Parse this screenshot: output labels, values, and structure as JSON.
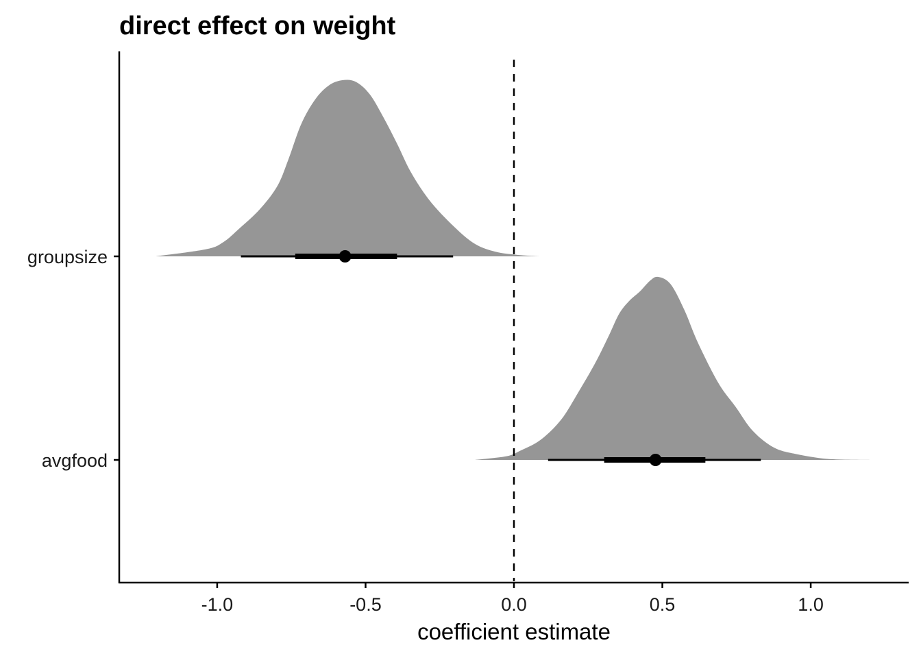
{
  "chart_data": {
    "type": "area",
    "subtype": "half-eye (density + point interval)",
    "title": "direct effect on weight",
    "xlabel": "coefficient estimate",
    "ylabel": "",
    "xlim": [
      -1.33,
      1.33
    ],
    "x_ticks": [
      -1.0,
      -0.5,
      0.0,
      0.5,
      1.0
    ],
    "x_tick_labels": [
      "-1.0",
      "-0.5",
      "0.0",
      "0.5",
      "1.0"
    ],
    "categories": [
      "groupsize",
      "avgfood"
    ],
    "reference_line": {
      "x": 0.0,
      "style": "dashed"
    },
    "grid": false,
    "legend": "none",
    "colors": {
      "density": "#969696",
      "interval": "#000000",
      "reference": "#000000"
    },
    "series": [
      {
        "name": "groupsize",
        "point": -0.569,
        "interval_66": [
          -0.737,
          -0.394
        ],
        "interval_95": [
          -0.92,
          -0.205
        ],
        "density": {
          "x": [
            -1.207,
            -1.039,
            -0.98,
            -0.924,
            -0.855,
            -0.797,
            -0.76,
            -0.717,
            -0.67,
            -0.624,
            -0.578,
            -0.532,
            -0.486,
            -0.44,
            -0.394,
            -0.348,
            -0.29,
            -0.221,
            -0.14,
            -0.071,
            0.0,
            0.088
          ],
          "y": [
            0,
            0.04,
            0.08,
            0.16,
            0.27,
            0.4,
            0.55,
            0.75,
            0.89,
            0.97,
            1.0,
            0.99,
            0.92,
            0.79,
            0.64,
            0.48,
            0.33,
            0.2,
            0.08,
            0.03,
            0.01,
            0
          ]
        }
      },
      {
        "name": "avgfood",
        "point": 0.477,
        "interval_66": [
          0.304,
          0.645
        ],
        "interval_95": [
          0.115,
          0.832
        ],
        "density": {
          "x": [
            -0.131,
            -0.025,
            0.021,
            0.09,
            0.159,
            0.217,
            0.274,
            0.32,
            0.355,
            0.389,
            0.424,
            0.459,
            0.486,
            0.528,
            0.574,
            0.62,
            0.689,
            0.747,
            0.804,
            0.873,
            0.942,
            1.058,
            1.2
          ],
          "y": [
            0,
            0.02,
            0.05,
            0.11,
            0.22,
            0.37,
            0.53,
            0.68,
            0.8,
            0.87,
            0.92,
            0.98,
            1.0,
            0.96,
            0.82,
            0.64,
            0.42,
            0.29,
            0.16,
            0.07,
            0.035,
            0.005,
            0
          ]
        }
      }
    ]
  }
}
